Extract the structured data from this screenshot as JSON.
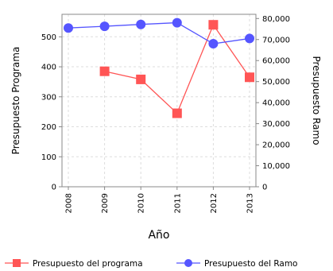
{
  "chart_data": {
    "type": "line",
    "x": [
      "2008",
      "2009",
      "2010",
      "2011",
      "2012",
      "2013"
    ],
    "xlabel": "Año",
    "ylabel_left": "Presupuesto Programa",
    "ylabel_right": "Presupuesto Ramo",
    "ylim_left": [
      0,
      575
    ],
    "yticks_left": [
      "0",
      "100",
      "200",
      "300",
      "400",
      "500"
    ],
    "ylim_right": [
      0,
      82000
    ],
    "yticks_right": [
      "0",
      "10,000",
      "20,000",
      "30,000",
      "40,000",
      "50,000",
      "60,000",
      "70,000",
      "80,000"
    ],
    "grid": true,
    "legend_position": "bottom",
    "series": [
      {
        "name": "Presupuesto del programa",
        "axis": "left",
        "marker": "square",
        "color": "#FF5555",
        "values": [
          null,
          385,
          358,
          245,
          540,
          365
        ]
      },
      {
        "name": "Presupuesto del Ramo",
        "axis": "right",
        "marker": "circle",
        "color": "#5555FF",
        "values": [
          75500,
          76300,
          77200,
          78000,
          68000,
          70500
        ]
      }
    ]
  }
}
